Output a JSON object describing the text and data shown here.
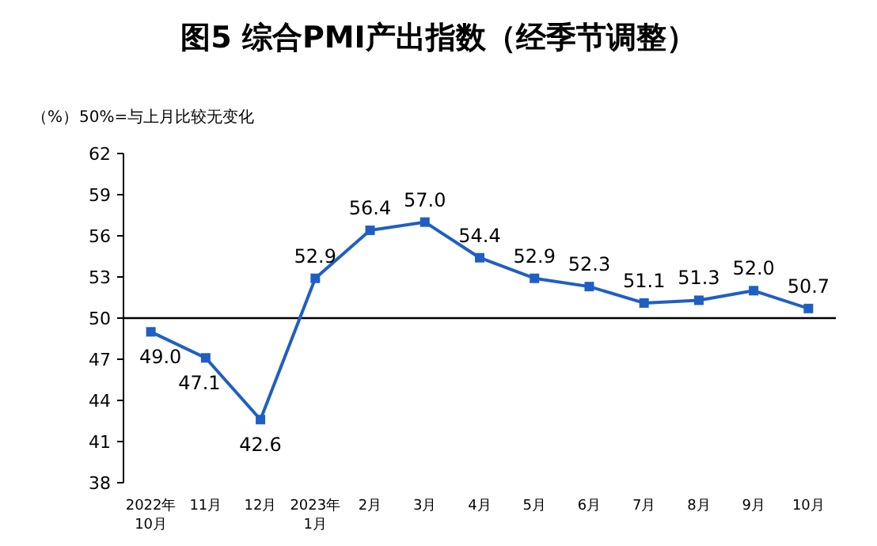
{
  "chart_data": {
    "type": "line",
    "title": "图5 综合PMI产出指数（经季节调整）",
    "ylabel": "（%）",
    "annotations": [
      "50%=与上月比较无变化"
    ],
    "categories": [
      "2022年\n10月",
      "11月",
      "12月",
      "2023年\n1月",
      "2月",
      "3月",
      "4月",
      "5月",
      "6月",
      "7月",
      "8月",
      "9月",
      "10月"
    ],
    "series": [
      {
        "color": "#1f5fc4",
        "values": [
          49.0,
          47.1,
          42.6,
          52.9,
          56.4,
          57.0,
          54.4,
          52.9,
          52.3,
          51.1,
          51.3,
          52.0,
          50.7
        ],
        "value_labels": [
          "49.0",
          "47.1",
          "42.6",
          "52.9",
          "56.4",
          "57.0",
          "54.4",
          "52.9",
          "52.3",
          "51.1",
          "51.3",
          "52.0",
          "50.7"
        ]
      }
    ],
    "ylim": [
      38,
      62
    ],
    "yticks": [
      38,
      41,
      44,
      47,
      50,
      53,
      56,
      59,
      62
    ],
    "ref_lines": [
      {
        "axis": "y",
        "value": 50,
        "color": "#000000"
      }
    ],
    "marker": "square",
    "grid": false
  }
}
